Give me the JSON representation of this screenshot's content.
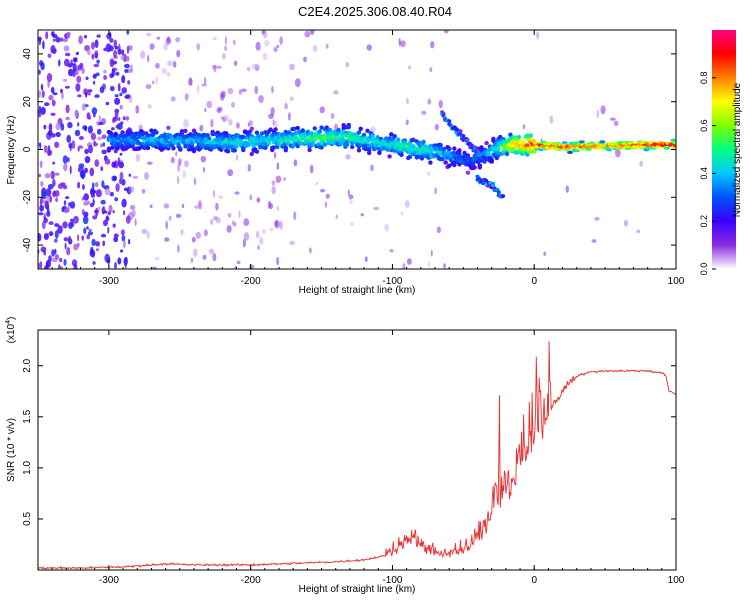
{
  "title": "C2E4.2025.306.08.40.R04",
  "chart_data": [
    {
      "type": "heatmap",
      "xlabel": "Height of straight line (km)",
      "ylabel": "Frequency (Hz)",
      "xlim": [
        -350,
        100
      ],
      "ylim": [
        -50,
        50
      ],
      "xticks": [
        -300,
        -200,
        -100,
        0,
        100
      ],
      "yticks": [
        -40,
        -20,
        0,
        20,
        40
      ],
      "colorbar": {
        "label": "Normalized spectral amplitude",
        "range": [
          0,
          1
        ],
        "ticks": [
          "0.0",
          "0.2",
          "0.4",
          "0.6",
          "0.8"
        ],
        "tick_values": [
          0,
          0.2,
          0.4,
          0.6,
          0.8
        ],
        "colors": [
          "#ffffff",
          "#8a2be2",
          "#3a00ff",
          "#0050ff",
          "#00c8ff",
          "#00ff80",
          "#80ff00",
          "#ffff00",
          "#ff8000",
          "#ff0000",
          "#ff0080"
        ]
      },
      "ridge": {
        "x": [
          -300,
          -270,
          -240,
          -210,
          -180,
          -150,
          -130,
          -110,
          -90,
          -70,
          -55,
          -45,
          -35,
          -25,
          -15,
          0,
          20,
          50,
          80,
          100
        ],
        "y": [
          4,
          4,
          3.5,
          3,
          4,
          5,
          5,
          3,
          1,
          -1,
          -3,
          -5,
          -2,
          1,
          2,
          2,
          1,
          1.5,
          2,
          2
        ],
        "peak_amplitude": [
          0.35,
          0.4,
          0.4,
          0.45,
          0.45,
          0.55,
          0.5,
          0.45,
          0.5,
          0.45,
          0.35,
          0.3,
          0.35,
          0.5,
          0.75,
          0.9,
          0.9,
          0.8,
          0.9,
          0.95
        ]
      },
      "secondary_ridge": {
        "x": [
          -65,
          -55,
          -45,
          -35
        ],
        "y": [
          15,
          8,
          2,
          -4
        ]
      },
      "lower_ridge": {
        "x": [
          -40,
          -30,
          -22
        ],
        "y": [
          -12,
          -15,
          -20
        ]
      }
    },
    {
      "type": "line",
      "xlabel": "Height of straight line (km)",
      "ylabel": "SNR (10 * v/v)",
      "y_multiplier": "(x10",
      "y_multiplier_exp": "4",
      "y_multiplier_close": ")",
      "xlim": [
        -350,
        100
      ],
      "ylim": [
        0,
        2.35
      ],
      "xticks": [
        -300,
        -200,
        -100,
        0,
        100
      ],
      "yticks": [
        0.5,
        1.0,
        1.5,
        2.0
      ],
      "ytick_labels": [
        "0.5",
        "1.0",
        "1.5",
        "2.0"
      ],
      "series_color": "#e83030",
      "series": [
        {
          "x": [
            -350,
            -320,
            -290,
            -270,
            -260,
            -240,
            -220,
            -200,
            -180,
            -160,
            -140,
            -120,
            -105,
            -95,
            -85,
            -75,
            -65,
            -55,
            -45,
            -38,
            -32,
            -28,
            -24,
            -20,
            -16,
            -12,
            -8,
            -4,
            0,
            5,
            10,
            15,
            20,
            25,
            30,
            40,
            50,
            60,
            70,
            80,
            90,
            93,
            95,
            100
          ],
          "y": [
            0.02,
            0.02,
            0.03,
            0.05,
            0.06,
            0.05,
            0.05,
            0.05,
            0.06,
            0.07,
            0.08,
            0.1,
            0.14,
            0.25,
            0.3,
            0.2,
            0.15,
            0.18,
            0.25,
            0.35,
            0.5,
            0.65,
            0.75,
            0.8,
            0.9,
            1.0,
            1.2,
            1.3,
            1.4,
            1.5,
            1.55,
            1.65,
            1.75,
            1.85,
            1.9,
            1.94,
            1.95,
            1.95,
            1.95,
            1.95,
            1.93,
            1.9,
            1.75,
            1.72
          ]
        }
      ]
    }
  ]
}
